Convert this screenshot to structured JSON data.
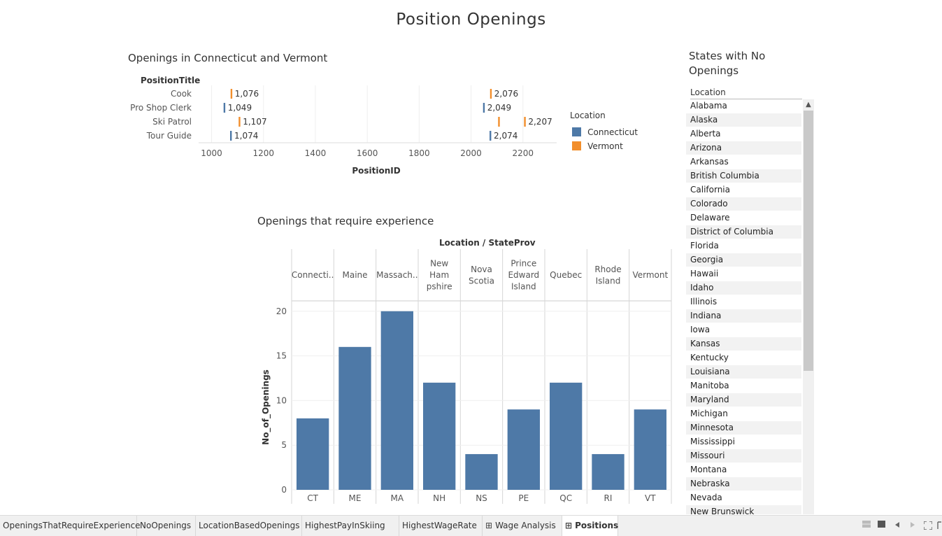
{
  "dashboard": {
    "title": "Position Openings"
  },
  "sheet1": {
    "title": "Openings in Connecticut  and Vermont",
    "row_header": "PositionTitle",
    "axis_label": "PositionID",
    "legend": {
      "title": "Location",
      "items": [
        {
          "label": "Connecticut",
          "color": "#4e79a7"
        },
        {
          "label": "Vermont",
          "color": "#f28e2b"
        }
      ]
    },
    "chart_data": {
      "type": "scatter",
      "mark": "tick",
      "categories": [
        "Cook",
        "Pro Shop Clerk",
        "Ski Patrol",
        "Tour Guide"
      ],
      "xlabel": "PositionID",
      "xticks": [
        1000,
        1200,
        1400,
        1600,
        1800,
        2000,
        2200
      ],
      "xlim": [
        950,
        2330
      ],
      "series": [
        {
          "name": "Connecticut",
          "color": "#4e79a7",
          "points": [
            {
              "category": "Pro Shop Clerk",
              "x": 1049,
              "label": "1,049"
            },
            {
              "category": "Pro Shop Clerk",
              "x": 2049,
              "label": "2,049"
            },
            {
              "category": "Tour Guide",
              "x": 1074,
              "label": "1,074"
            },
            {
              "category": "Tour Guide",
              "x": 2074,
              "label": "2,074"
            }
          ]
        },
        {
          "name": "Vermont",
          "color": "#f28e2b",
          "points": [
            {
              "category": "Cook",
              "x": 1076,
              "label": "1,076"
            },
            {
              "category": "Cook",
              "x": 2076,
              "label": "2,076"
            },
            {
              "category": "Ski Patrol",
              "x": 1107,
              "label": "1,107"
            },
            {
              "category": "Ski Patrol",
              "x": 2107,
              "label": ""
            },
            {
              "category": "Ski Patrol",
              "x": 2207,
              "label": "2,207"
            }
          ]
        }
      ]
    }
  },
  "sheet2": {
    "title": "Openings that require experience",
    "header": "Location / StateProv",
    "ylabel": "No_of_Openings",
    "chart_data": {
      "type": "bar",
      "group_labels": [
        "Connecti..",
        "Maine",
        "Massach..",
        "New Ham pshire",
        "Nova Scotia",
        "Prince Edward Island",
        "Quebec",
        "Rhode Island",
        "Vermont"
      ],
      "categories": [
        "CT",
        "ME",
        "MA",
        "NH",
        "NS",
        "PE",
        "QC",
        "RI",
        "VT"
      ],
      "values": [
        8,
        16,
        20,
        12,
        4,
        9,
        12,
        4,
        9
      ],
      "ylabel": "No_of_Openings",
      "yticks": [
        0,
        5,
        10,
        15,
        20
      ],
      "ylim": [
        0,
        21
      ],
      "color": "#4e79a7"
    }
  },
  "sheet3": {
    "title": "States with No Openings",
    "column_header": "Location",
    "items": [
      "Alabama",
      "Alaska",
      "Alberta",
      "Arizona",
      "Arkansas",
      "British Columbia",
      "California",
      "Colorado",
      "Delaware",
      "District of Columbia",
      "Florida",
      "Georgia",
      "Hawaii",
      "Idaho",
      "Illinois",
      "Indiana",
      "Iowa",
      "Kansas",
      "Kentucky",
      "Louisiana",
      "Manitoba",
      "Maryland",
      "Michigan",
      "Minnesota",
      "Mississippi",
      "Missouri",
      "Montana",
      "Nebraska",
      "Nevada",
      "New Brunswick"
    ]
  },
  "tabs": [
    {
      "label": "OpeningsThatRequireExperience",
      "icon": "",
      "active": false
    },
    {
      "label": "NoOpenings",
      "icon": "",
      "active": false
    },
    {
      "label": "LocationBasedOpenings",
      "icon": "",
      "active": false
    },
    {
      "label": "HighestPayInSkiing",
      "icon": "",
      "active": false
    },
    {
      "label": "HighestWageRate",
      "icon": "",
      "active": false
    },
    {
      "label": "Wage Analysis",
      "icon": "dashboard-icon",
      "active": false
    },
    {
      "label": "Positions",
      "icon": "dashboard-icon",
      "active": true
    }
  ]
}
